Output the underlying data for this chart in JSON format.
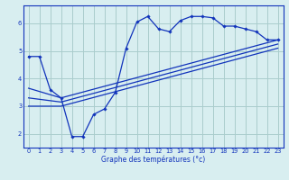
{
  "background_color": "#d8eef0",
  "grid_color": "#aacccc",
  "line_color": "#1133bb",
  "xlabel": "Graphe des températures (°c)",
  "xlim": [
    -0.5,
    23.5
  ],
  "ylim": [
    1.5,
    6.65
  ],
  "yticks": [
    2,
    3,
    4,
    5,
    6
  ],
  "xtick_labels": [
    "0",
    "1",
    "2",
    "3",
    "4",
    "5",
    "6",
    "7",
    "8",
    "9",
    "10",
    "11",
    "12",
    "13",
    "14",
    "15",
    "16",
    "17",
    "18",
    "19",
    "20",
    "21",
    "22",
    "23"
  ],
  "xticks": [
    0,
    1,
    2,
    3,
    4,
    5,
    6,
    7,
    8,
    9,
    10,
    11,
    12,
    13,
    14,
    15,
    16,
    17,
    18,
    19,
    20,
    21,
    22,
    23
  ],
  "main_x": [
    0,
    1,
    2,
    3,
    4,
    5,
    6,
    7,
    8,
    9,
    10,
    11,
    12,
    13,
    14,
    15,
    16,
    17,
    18,
    19,
    20,
    21,
    22,
    23
  ],
  "main_y": [
    4.8,
    4.8,
    3.6,
    3.3,
    1.9,
    1.9,
    2.7,
    2.9,
    3.5,
    5.1,
    6.05,
    6.25,
    5.8,
    5.7,
    6.1,
    6.25,
    6.25,
    6.2,
    5.9,
    5.9,
    5.8,
    5.7,
    5.4,
    5.4
  ],
  "trend1_x": [
    0,
    3,
    23
  ],
  "trend1_y": [
    3.65,
    3.3,
    5.4
  ],
  "trend2_x": [
    0,
    3,
    23
  ],
  "trend2_y": [
    3.3,
    3.15,
    5.25
  ],
  "trend3_x": [
    0,
    3,
    23
  ],
  "trend3_y": [
    3.0,
    3.0,
    5.1
  ]
}
